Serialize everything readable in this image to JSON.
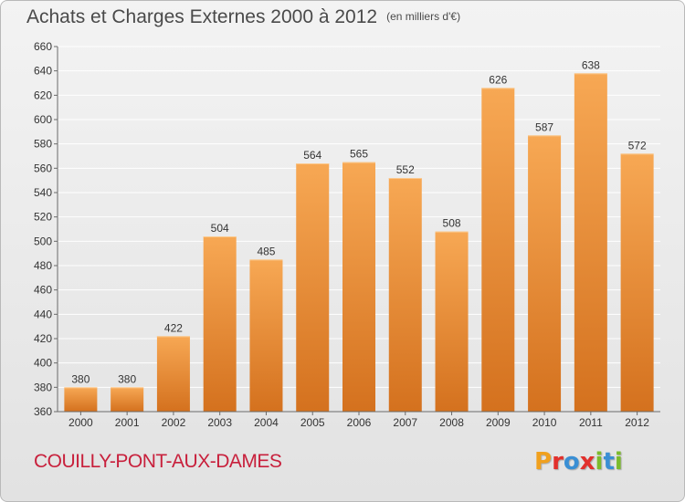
{
  "header": {
    "title": "Achats et Charges Externes 2000 à 2012",
    "unit": "(en milliers d'€)"
  },
  "footer": {
    "commune": "COUILLY-PONT-AUX-DAMES",
    "logo_letters": [
      "P",
      "r",
      "o",
      "x",
      "i",
      "t",
      "i"
    ],
    "logo_colors": [
      "#f0a01e",
      "#e2302c",
      "#3a8fd4",
      "#e2302c",
      "#7cbb2c",
      "#3a8fd4",
      "#7cbb2c"
    ]
  },
  "colors": {
    "bar_top": "#f7a854",
    "bar_bottom": "#d4711e",
    "grid": "#ffffff",
    "axis": "#6a6a6a",
    "text": "#333333"
  },
  "chart_data": {
    "type": "bar",
    "categories": [
      "2000",
      "2001",
      "2002",
      "2003",
      "2004",
      "2005",
      "2006",
      "2007",
      "2008",
      "2009",
      "2010",
      "2011",
      "2012"
    ],
    "values": [
      380,
      380,
      422,
      504,
      485,
      564,
      565,
      552,
      508,
      626,
      587,
      638,
      572
    ],
    "ylim": [
      360,
      660
    ],
    "yticks": [
      360,
      380,
      400,
      420,
      440,
      460,
      480,
      500,
      520,
      540,
      560,
      580,
      600,
      620,
      640,
      660
    ],
    "grid": true,
    "data_labels": true
  }
}
